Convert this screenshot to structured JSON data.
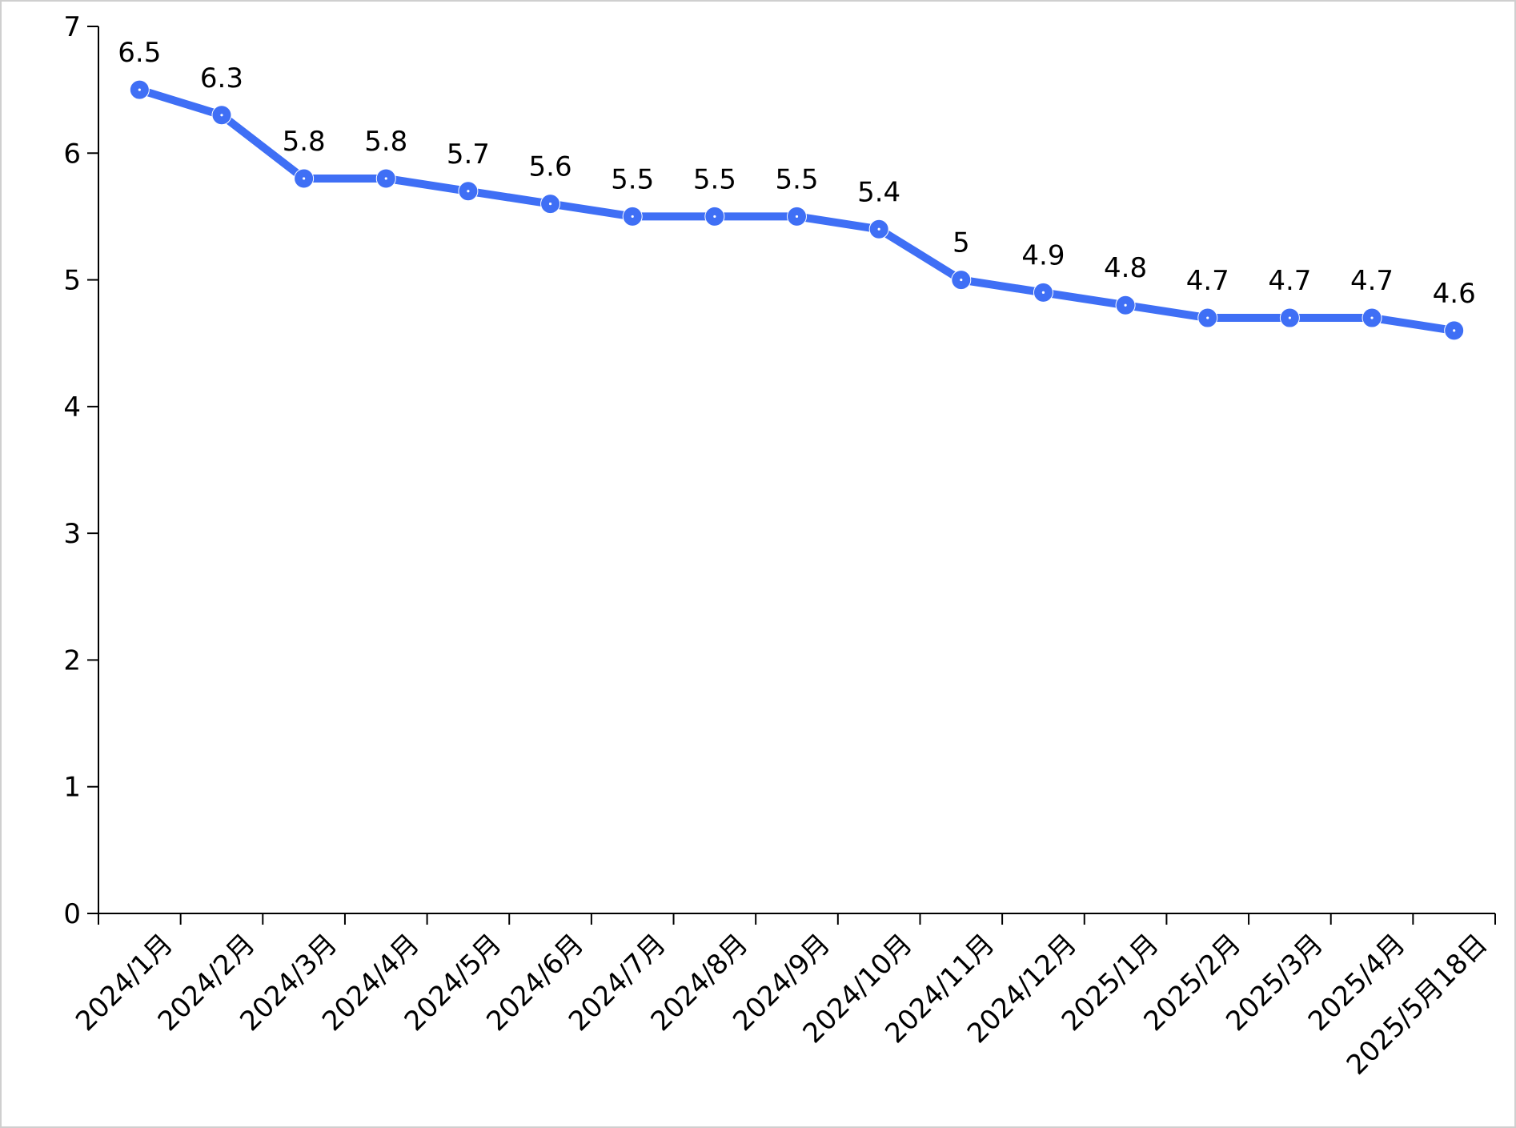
{
  "chart_data": {
    "type": "line",
    "title": "",
    "xlabel": "",
    "ylabel": "",
    "ylim": [
      0,
      7
    ],
    "yticks": [
      "0",
      "1",
      "2",
      "3",
      "4",
      "5",
      "6",
      "7"
    ],
    "grid": false,
    "legend": "none",
    "categories": [
      "2024/1月",
      "2024/2月",
      "2024/3月",
      "2024/4月",
      "2024/5月",
      "2024/6月",
      "2024/7月",
      "2024/8月",
      "2024/9月",
      "2024/10月",
      "2024/11月",
      "2024/12月",
      "2025/1月",
      "2025/2月",
      "2025/3月",
      "2025/4月",
      "2025/5月18日"
    ],
    "series": [
      {
        "color": "#3f6ff5",
        "values": [
          6.5,
          6.3,
          5.8,
          5.8,
          5.7,
          5.6,
          5.5,
          5.5,
          5.5,
          5.4,
          5,
          4.9,
          4.8,
          4.7,
          4.7,
          4.7,
          4.6
        ],
        "labels": [
          "6.5",
          "6.3",
          "5.8",
          "5.8",
          "5.7",
          "5.6",
          "5.5",
          "5.5",
          "5.5",
          "5.4",
          "5",
          "4.9",
          "4.8",
          "4.7",
          "4.7",
          "4.7",
          "4.6"
        ]
      }
    ]
  }
}
